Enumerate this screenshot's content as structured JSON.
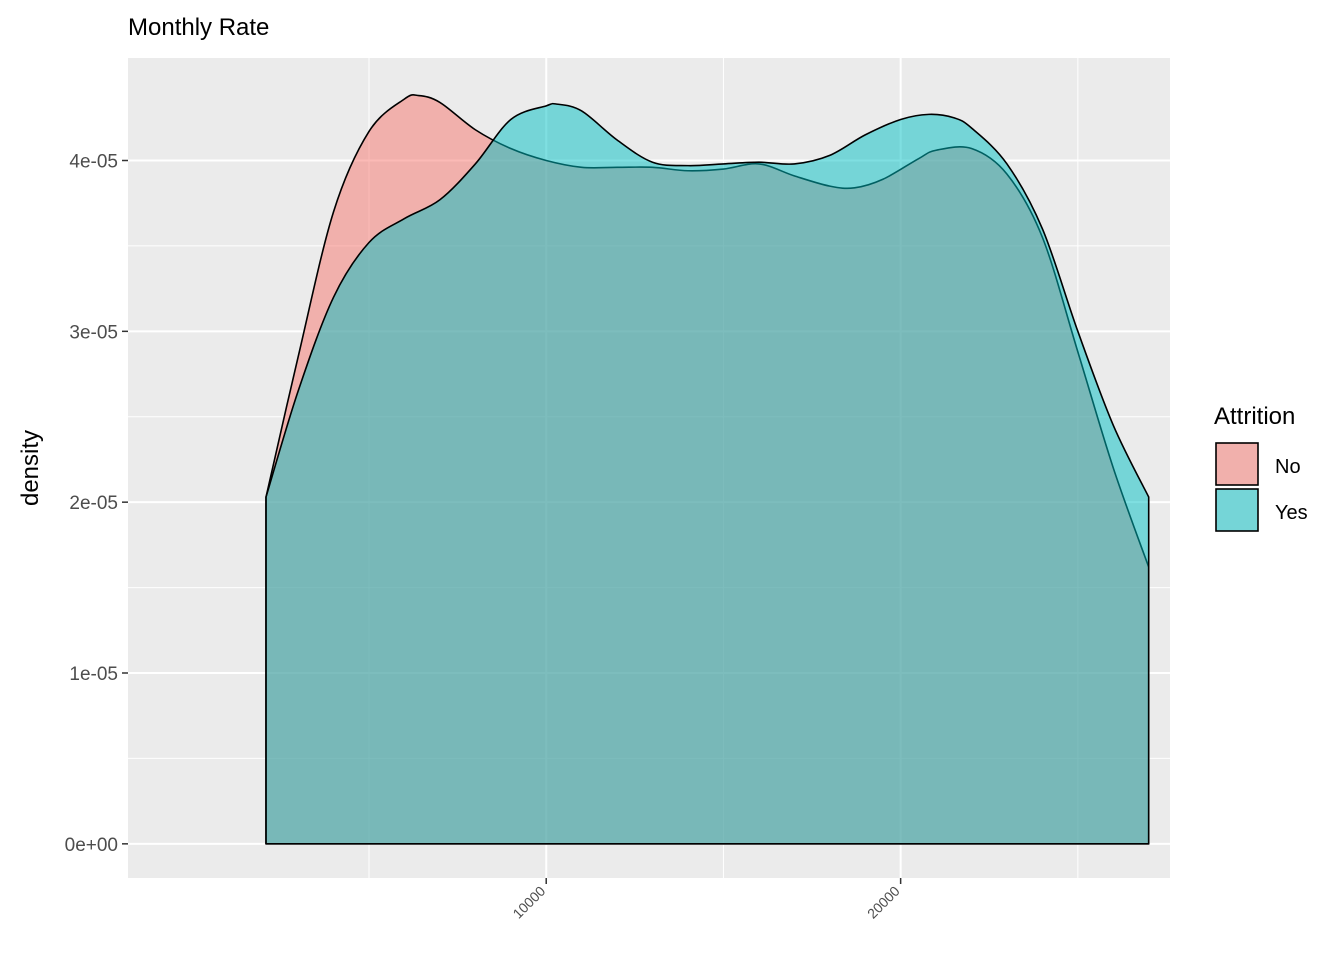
{
  "chart_data": {
    "type": "area",
    "title": "Monthly Rate",
    "xlabel": "",
    "ylabel": "density",
    "xlim": [
      -1800,
      27600
    ],
    "ylim": [
      -2e-06,
      4.6e-05
    ],
    "x_ticks": [
      10000,
      20000
    ],
    "x_tick_labels": [
      "10000",
      "20000"
    ],
    "x_minor_ticks": [
      5000,
      15000,
      25000
    ],
    "y_ticks": [
      0,
      1e-05,
      2e-05,
      3e-05,
      4e-05
    ],
    "y_tick_labels": [
      "0e+00",
      "1e-05",
      "2e-05",
      "3e-05",
      "4e-05"
    ],
    "y_minor_ticks": [
      5e-06,
      1.5e-05,
      2.5e-05,
      3.5e-05
    ],
    "grid": true,
    "legend": {
      "title": "Attrition",
      "position": "right"
    },
    "series": [
      {
        "name": "No",
        "color": "#F8766D",
        "x": [
          2094,
          3000,
          4000,
          5000,
          6000,
          6400,
          7000,
          8000,
          9000,
          10000,
          11000,
          12000,
          13000,
          14000,
          15000,
          16000,
          17000,
          18000,
          18700,
          19500,
          20500,
          21000,
          22000,
          23000,
          24000,
          25000,
          26000,
          26999
        ],
        "values": [
          2.03e-05,
          2.85e-05,
          3.7e-05,
          4.17e-05,
          4.36e-05,
          4.38e-05,
          4.34e-05,
          4.18e-05,
          4.07e-05,
          4e-05,
          3.96e-05,
          3.96e-05,
          3.96e-05,
          3.94e-05,
          3.95e-05,
          3.98e-05,
          3.91e-05,
          3.85e-05,
          3.84e-05,
          3.89e-05,
          4.01e-05,
          4.06e-05,
          4.07e-05,
          3.92e-05,
          3.55e-05,
          2.88e-05,
          2.2e-05,
          1.62e-05
        ]
      },
      {
        "name": "Yes",
        "color": "#00BFC4",
        "x": [
          2094,
          3000,
          4000,
          5000,
          6000,
          7000,
          8000,
          9000,
          10000,
          10300,
          11000,
          12000,
          13000,
          14000,
          15000,
          16000,
          17000,
          18000,
          19000,
          20000,
          20800,
          21500,
          22000,
          23000,
          24000,
          25000,
          26000,
          26999
        ],
        "values": [
          2.03e-05,
          2.65e-05,
          3.2e-05,
          3.52e-05,
          3.66e-05,
          3.77e-05,
          3.98e-05,
          4.24e-05,
          4.32e-05,
          4.33e-05,
          4.29e-05,
          4.12e-05,
          3.99e-05,
          3.97e-05,
          3.98e-05,
          3.99e-05,
          3.98e-05,
          4.03e-05,
          4.15e-05,
          4.24e-05,
          4.27e-05,
          4.25e-05,
          4.19e-05,
          3.98e-05,
          3.6e-05,
          3e-05,
          2.45e-05,
          2.03e-05
        ]
      }
    ]
  }
}
